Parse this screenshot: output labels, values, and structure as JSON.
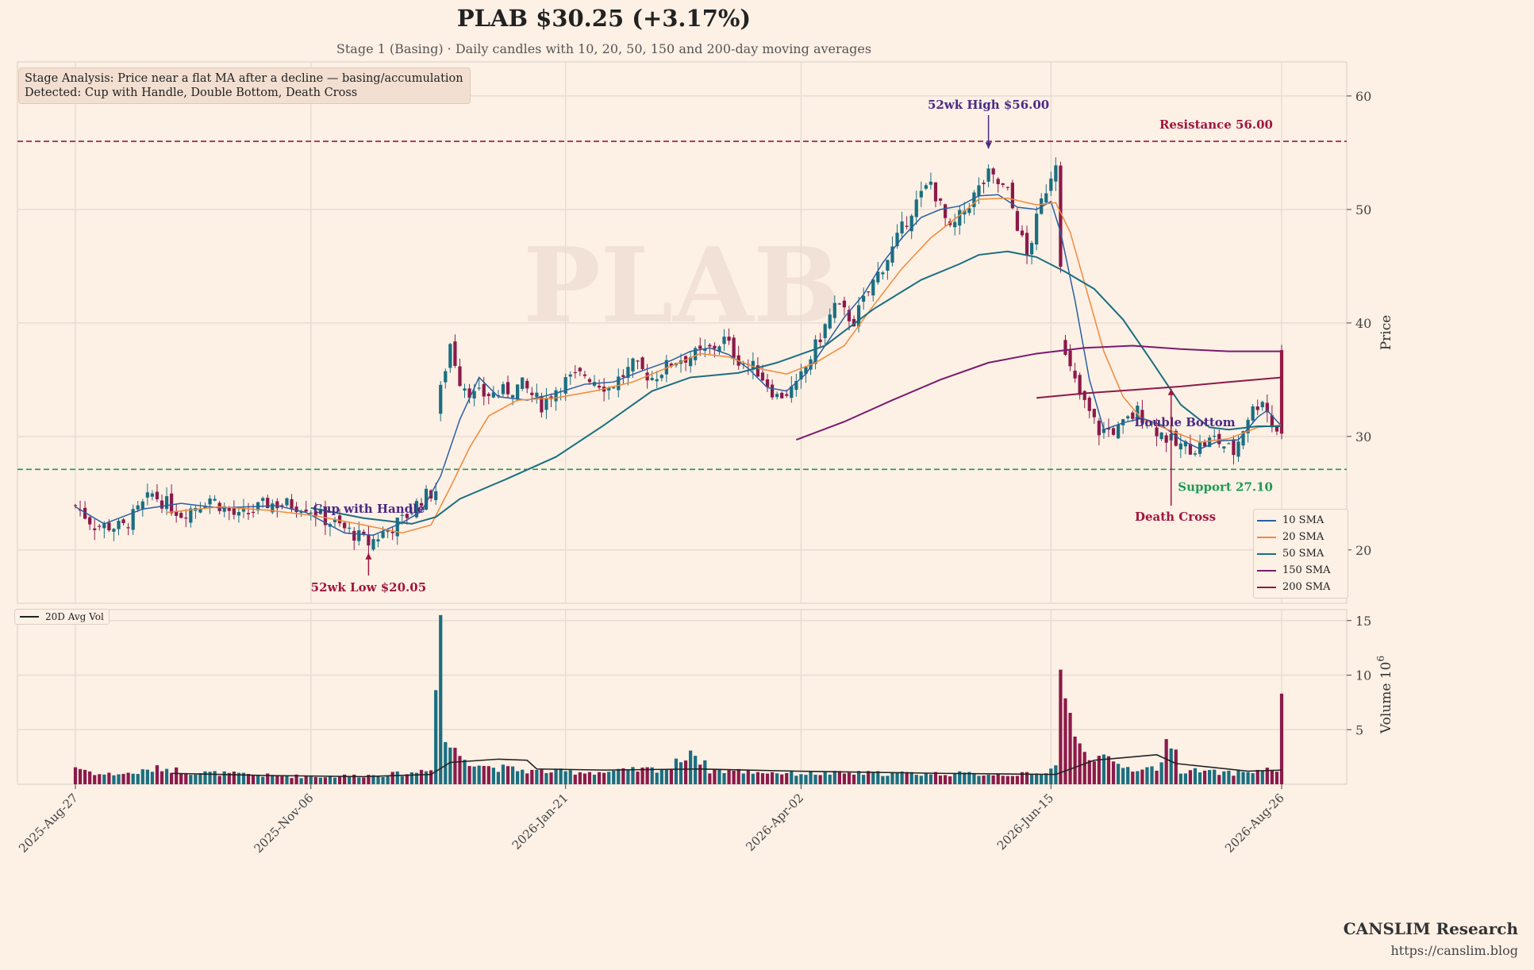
{
  "header": {
    "title": "PLAB  $30.25  (+3.17%)",
    "subtitle": "Stage 1 (Basing)  ·  Daily candles with 10, 20, 50, 150 and 200-day moving averages"
  },
  "stage_box": {
    "line1": "Stage Analysis: Price near a flat MA after a decline — basing/accumulation",
    "line2": "Detected: Cup with Handle, Double Bottom, Death Cross"
  },
  "watermark": "PLAB",
  "footer": {
    "brand": "CANSLIM Research",
    "url": "https://canslim.blog"
  },
  "colors": {
    "background": "#fdf0e5",
    "up": "#1a6f80",
    "down": "#8b1a4a",
    "resistance": "#a0163f",
    "support": "#1e9a55",
    "annotation": "#4b2a85",
    "grid": "#e7ddd3"
  },
  "legend": [
    {
      "label": "10 SMA",
      "color": "#2a5fa0"
    },
    {
      "label": "20 SMA",
      "color": "#f08a3a"
    },
    {
      "label": "50 SMA",
      "color": "#1a6f80"
    },
    {
      "label": "150 SMA",
      "color": "#7a1a6e"
    },
    {
      "label": "200 SMA",
      "color": "#8b1a4a"
    }
  ],
  "volume_legend": "20D Avg Vol",
  "annotations": {
    "high": "52wk High $56.00",
    "low": "52wk Low $20.05",
    "resistance": "Resistance 56.00",
    "support": "Support 27.10",
    "cup": "Cup with Handle",
    "double_bottom": "Double Bottom",
    "death_cross": "Death Cross"
  },
  "chart_data": {
    "type": "candlestick",
    "title": "PLAB  $30.25  (+3.17%)",
    "ylabel": "Price",
    "volume_ylabel": "Volume 10^6",
    "x_ticks": [
      "2025-Aug-27",
      "2025-Nov-06",
      "2026-Jan-21",
      "2026-Apr-02",
      "2026-Jun-15",
      "2026-Aug-26"
    ],
    "price_ticks": [
      20,
      30,
      40,
      50,
      60
    ],
    "volume_ticks": [
      5,
      10,
      15
    ],
    "ylim": [
      15.3,
      63.0
    ],
    "volume_ylim": [
      0,
      16
    ],
    "n_days": 252,
    "resistance": 56.0,
    "support": 27.1,
    "high_52wk": 56.0,
    "low_52wk": 20.05,
    "last_close": 30.25,
    "change_pct": 3.17,
    "price_path": [
      [
        0,
        23.9
      ],
      [
        4,
        22.2
      ],
      [
        10,
        22.0
      ],
      [
        16,
        24.9
      ],
      [
        22,
        23.2
      ],
      [
        28,
        24.6
      ],
      [
        34,
        22.8
      ],
      [
        40,
        24.1
      ],
      [
        48,
        23.9
      ],
      [
        52,
        22.7
      ],
      [
        58,
        21.4
      ],
      [
        61,
        20.6
      ],
      [
        64,
        21.5
      ],
      [
        68,
        22.6
      ],
      [
        72,
        24.5
      ],
      [
        75,
        25.3
      ],
      [
        76,
        34.0
      ],
      [
        78,
        38.2
      ],
      [
        80,
        35.0
      ],
      [
        83,
        33.6
      ],
      [
        88,
        33.8
      ],
      [
        93,
        34.5
      ],
      [
        97,
        32.8
      ],
      [
        101,
        34.7
      ],
      [
        106,
        35.5
      ],
      [
        111,
        34.3
      ],
      [
        116,
        36.2
      ],
      [
        120,
        35.2
      ],
      [
        125,
        36.8
      ],
      [
        131,
        37.4
      ],
      [
        135,
        38.5
      ],
      [
        138,
        36.8
      ],
      [
        142,
        35.8
      ],
      [
        146,
        33.5
      ],
      [
        150,
        34.3
      ],
      [
        155,
        38.8
      ],
      [
        158,
        41.5
      ],
      [
        162,
        40.2
      ],
      [
        166,
        43.6
      ],
      [
        170,
        46.5
      ],
      [
        174,
        50.0
      ],
      [
        178,
        52.4
      ],
      [
        182,
        48.0
      ],
      [
        186,
        50.6
      ],
      [
        190,
        53.0
      ],
      [
        194,
        51.5
      ],
      [
        198,
        45.8
      ],
      [
        201,
        50.6
      ],
      [
        204,
        54.4
      ],
      [
        206,
        36.9
      ],
      [
        209,
        33.6
      ],
      [
        213,
        30.5
      ],
      [
        217,
        30.6
      ],
      [
        221,
        32.2
      ],
      [
        225,
        30.6
      ],
      [
        229,
        29.2
      ],
      [
        233,
        29.0
      ],
      [
        237,
        29.8
      ],
      [
        241,
        28.6
      ],
      [
        244,
        31.8
      ],
      [
        247,
        33.4
      ],
      [
        249,
        31.0
      ],
      [
        251,
        30.25
      ]
    ],
    "volume_path": [
      [
        0,
        1.6
      ],
      [
        5,
        0.9
      ],
      [
        12,
        1.0
      ],
      [
        18,
        1.5
      ],
      [
        24,
        1.1
      ],
      [
        30,
        1.0
      ],
      [
        40,
        0.8
      ],
      [
        50,
        0.7
      ],
      [
        60,
        0.8
      ],
      [
        70,
        1.0
      ],
      [
        74,
        1.6
      ],
      [
        76,
        15.5
      ],
      [
        77,
        4.0
      ],
      [
        79,
        3.0
      ],
      [
        82,
        2.2
      ],
      [
        86,
        1.6
      ],
      [
        95,
        1.2
      ],
      [
        110,
        1.1
      ],
      [
        124,
        1.5
      ],
      [
        128,
        3.2
      ],
      [
        132,
        1.3
      ],
      [
        150,
        1.0
      ],
      [
        170,
        1.0
      ],
      [
        200,
        0.9
      ],
      [
        204,
        1.6
      ],
      [
        205,
        10.5
      ],
      [
        206,
        8.0
      ],
      [
        208,
        3.8
      ],
      [
        212,
        2.6
      ],
      [
        216,
        1.9
      ],
      [
        220,
        1.4
      ],
      [
        225,
        1.5
      ],
      [
        228,
        4.3
      ],
      [
        230,
        1.3
      ],
      [
        240,
        1.0
      ],
      [
        250,
        1.4
      ],
      [
        251,
        8.3
      ]
    ],
    "volume_avg_path": [
      [
        20,
        1.0
      ],
      [
        40,
        0.8
      ],
      [
        60,
        0.7
      ],
      [
        74,
        0.9
      ],
      [
        78,
        2.0
      ],
      [
        88,
        2.3
      ],
      [
        94,
        2.2
      ],
      [
        96,
        1.4
      ],
      [
        110,
        1.3
      ],
      [
        130,
        1.4
      ],
      [
        150,
        1.2
      ],
      [
        180,
        1.0
      ],
      [
        204,
        0.9
      ],
      [
        212,
        2.2
      ],
      [
        225,
        2.7
      ],
      [
        229,
        1.9
      ],
      [
        244,
        1.2
      ],
      [
        251,
        1.3
      ]
    ],
    "sma_10": [
      [
        0,
        23.8
      ],
      [
        6,
        22.3
      ],
      [
        14,
        23.6
      ],
      [
        22,
        24.1
      ],
      [
        30,
        23.7
      ],
      [
        42,
        23.9
      ],
      [
        48,
        23.3
      ],
      [
        56,
        21.5
      ],
      [
        62,
        21.3
      ],
      [
        68,
        22.4
      ],
      [
        72,
        23.4
      ],
      [
        76,
        26.5
      ],
      [
        80,
        31.5
      ],
      [
        84,
        35.2
      ],
      [
        88,
        33.5
      ],
      [
        94,
        33.2
      ],
      [
        100,
        33.8
      ],
      [
        106,
        34.6
      ],
      [
        112,
        34.8
      ],
      [
        118,
        35.8
      ],
      [
        124,
        36.7
      ],
      [
        128,
        37.5
      ],
      [
        132,
        37.8
      ],
      [
        136,
        37.2
      ],
      [
        140,
        36.0
      ],
      [
        144,
        34.3
      ],
      [
        148,
        34.0
      ],
      [
        152,
        35.5
      ],
      [
        156,
        38.0
      ],
      [
        160,
        40.5
      ],
      [
        164,
        42.5
      ],
      [
        168,
        45.3
      ],
      [
        172,
        47.5
      ],
      [
        176,
        49.3
      ],
      [
        180,
        50.0
      ],
      [
        184,
        50.3
      ],
      [
        188,
        51.2
      ],
      [
        192,
        51.3
      ],
      [
        196,
        50.2
      ],
      [
        200,
        50.0
      ],
      [
        203,
        50.7
      ],
      [
        205,
        48.0
      ],
      [
        208,
        42.0
      ],
      [
        211,
        35.0
      ],
      [
        214,
        30.6
      ],
      [
        218,
        31.2
      ],
      [
        222,
        31.6
      ],
      [
        226,
        31.0
      ],
      [
        230,
        29.7
      ],
      [
        234,
        28.9
      ],
      [
        238,
        29.6
      ],
      [
        242,
        29.7
      ],
      [
        246,
        31.7
      ],
      [
        248,
        32.3
      ],
      [
        251,
        30.9
      ]
    ],
    "sma_20": [
      [
        19,
        23.3
      ],
      [
        30,
        23.8
      ],
      [
        40,
        23.5
      ],
      [
        50,
        23.0
      ],
      [
        60,
        22.2
      ],
      [
        68,
        21.5
      ],
      [
        74,
        22.2
      ],
      [
        78,
        25.5
      ],
      [
        82,
        29.0
      ],
      [
        86,
        31.8
      ],
      [
        92,
        33.2
      ],
      [
        100,
        33.4
      ],
      [
        108,
        34.0
      ],
      [
        116,
        34.8
      ],
      [
        124,
        36.2
      ],
      [
        130,
        37.3
      ],
      [
        136,
        37.0
      ],
      [
        142,
        36.0
      ],
      [
        148,
        35.5
      ],
      [
        154,
        36.5
      ],
      [
        160,
        38.0
      ],
      [
        166,
        41.5
      ],
      [
        172,
        44.8
      ],
      [
        178,
        47.5
      ],
      [
        184,
        49.5
      ],
      [
        188,
        50.9
      ],
      [
        194,
        51.0
      ],
      [
        200,
        50.4
      ],
      [
        204,
        50.6
      ],
      [
        207,
        48.0
      ],
      [
        210,
        43.5
      ],
      [
        214,
        37.5
      ],
      [
        218,
        33.5
      ],
      [
        222,
        31.5
      ],
      [
        228,
        30.5
      ],
      [
        234,
        29.5
      ],
      [
        240,
        29.8
      ],
      [
        246,
        30.8
      ],
      [
        251,
        31.0
      ]
    ],
    "sma_50": [
      [
        49,
        23.7
      ],
      [
        60,
        22.8
      ],
      [
        70,
        22.3
      ],
      [
        75,
        22.9
      ],
      [
        80,
        24.5
      ],
      [
        90,
        26.3
      ],
      [
        100,
        28.2
      ],
      [
        110,
        31.0
      ],
      [
        120,
        34.0
      ],
      [
        128,
        35.2
      ],
      [
        138,
        35.6
      ],
      [
        146,
        36.5
      ],
      [
        156,
        38.0
      ],
      [
        166,
        41.2
      ],
      [
        176,
        43.8
      ],
      [
        184,
        45.2
      ],
      [
        188,
        46.0
      ],
      [
        194,
        46.3
      ],
      [
        200,
        45.8
      ],
      [
        206,
        44.5
      ],
      [
        212,
        43.0
      ],
      [
        218,
        40.3
      ],
      [
        224,
        36.6
      ],
      [
        230,
        32.8
      ],
      [
        236,
        30.8
      ],
      [
        240,
        30.6
      ],
      [
        246,
        30.9
      ],
      [
        251,
        30.9
      ]
    ],
    "sma_150": [
      [
        150,
        29.7
      ],
      [
        160,
        31.3
      ],
      [
        170,
        33.2
      ],
      [
        180,
        35.0
      ],
      [
        190,
        36.5
      ],
      [
        200,
        37.3
      ],
      [
        210,
        37.8
      ],
      [
        220,
        38.0
      ],
      [
        230,
        37.7
      ],
      [
        240,
        37.5
      ],
      [
        251,
        37.5
      ]
    ],
    "sma_200": [
      [
        200,
        33.4
      ],
      [
        210,
        33.8
      ],
      [
        220,
        34.1
      ],
      [
        230,
        34.4
      ],
      [
        240,
        34.8
      ],
      [
        251,
        35.2
      ]
    ]
  }
}
